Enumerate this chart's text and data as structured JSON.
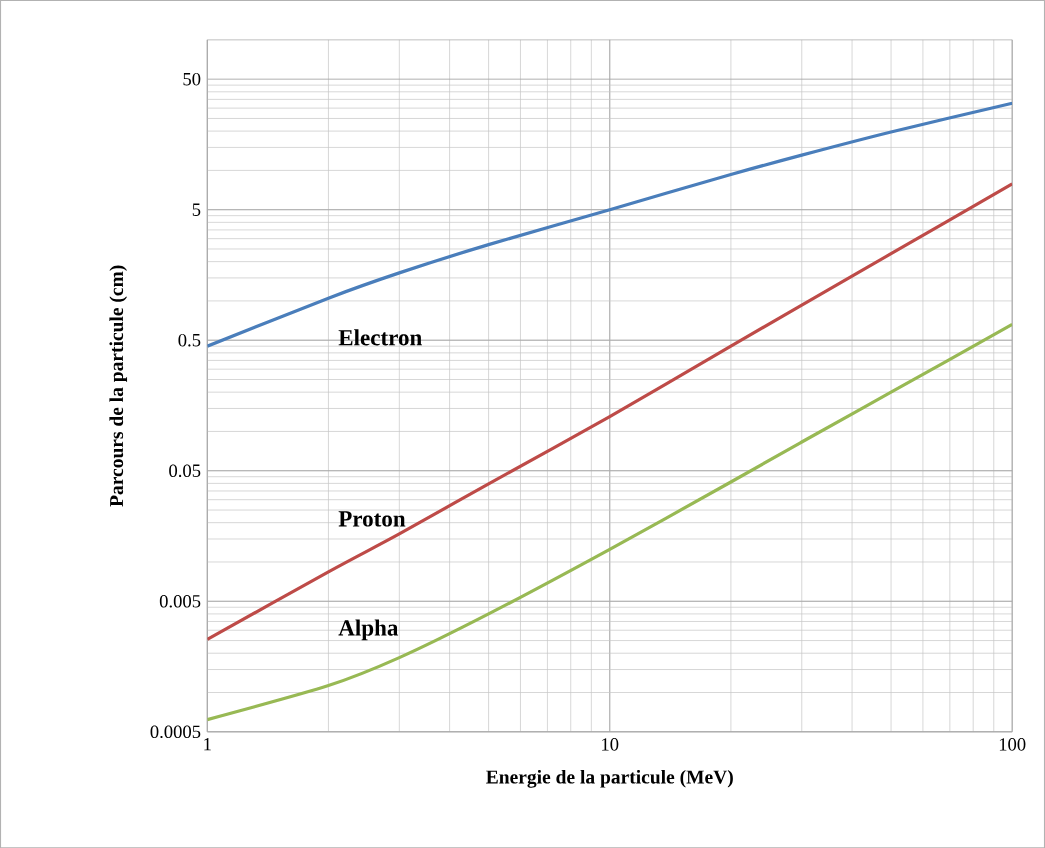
{
  "chart_data": {
    "type": "line",
    "xlabel": "Energie de la particule (MeV)",
    "ylabel": "Parcours de la  particule (cm)",
    "x": [
      1,
      2,
      3,
      5,
      10,
      20,
      30,
      50,
      100
    ],
    "series": [
      {
        "name": "Electron",
        "color": "#4a7ebb",
        "values": [
          0.45,
          1.05,
          1.64,
          2.7,
          5,
          9.3,
          13.1,
          19.7,
          32.7
        ]
      },
      {
        "name": "Proton",
        "color": "#be4b48",
        "values": [
          0.00255,
          0.0084,
          0.0164,
          0.0397,
          0.13,
          0.45,
          0.93,
          2.3,
          7.9
        ]
      },
      {
        "name": "Alpha",
        "color": "#98b954",
        "values": [
          0.00062,
          0.00113,
          0.00185,
          0.004,
          0.0125,
          0.041,
          0.083,
          0.2,
          0.66
        ]
      }
    ],
    "log": "xy",
    "xlim": [
      1,
      100
    ],
    "ylim": [
      0.0005,
      100
    ],
    "xticks": [
      1,
      10,
      100
    ],
    "yticks": [
      0.0005,
      0.005,
      0.05,
      0.5,
      5,
      50
    ],
    "grid": true
  }
}
